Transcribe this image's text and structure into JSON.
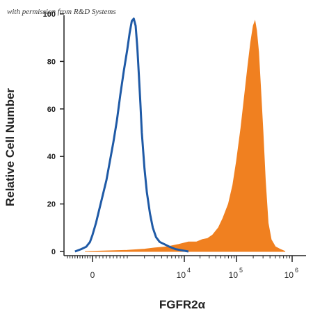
{
  "watermark": "with permission from R&D Systems",
  "chart_data": {
    "type": "area",
    "xlabel": "FGFR2α",
    "ylabel": "Relative Cell Number",
    "x_scale": "biexponential",
    "xlim": [
      -1000,
      1000000
    ],
    "ylim": [
      0,
      100
    ],
    "y_ticks": [
      0,
      20,
      40,
      60,
      80,
      100
    ],
    "x_ticks": [
      {
        "value": 0,
        "label": "0",
        "exponent": ""
      },
      {
        "value": 10000,
        "label": "10",
        "exponent": "4"
      },
      {
        "value": 100000,
        "label": "10",
        "exponent": "5"
      },
      {
        "value": 1000000,
        "label": "10",
        "exponent": "6"
      }
    ],
    "grid": false,
    "series": [
      {
        "style": "outline",
        "color": "#1f5aa6",
        "x": [
          -700,
          -450,
          -250,
          -100,
          0,
          100,
          200,
          300,
          400,
          500,
          600,
          700,
          800,
          900,
          1000,
          1100,
          1200,
          1300,
          1400,
          1500,
          1600,
          1700,
          1800,
          2000,
          2200,
          2500,
          2800,
          3200,
          3700,
          4500,
          5500,
          7000,
          9000,
          12000
        ],
        "y": [
          0,
          1,
          2,
          4,
          7,
          12,
          18,
          24,
          30,
          38,
          46,
          55,
          66,
          76,
          85,
          92,
          97,
          98,
          95,
          86,
          74,
          62,
          50,
          35,
          25,
          16,
          10,
          6,
          4,
          3,
          2,
          1,
          0.5,
          0
        ]
      },
      {
        "style": "filled",
        "color": "#f08020",
        "x": [
          -300,
          1000,
          2000,
          3000,
          5000,
          8000,
          12000,
          17000,
          22000,
          28000,
          35000,
          45000,
          55000,
          70000,
          85000,
          100000,
          120000,
          140000,
          160000,
          180000,
          200000,
          215000,
          230000,
          250000,
          270000,
          300000,
          330000,
          370000,
          420000,
          500000,
          600000,
          750000
        ],
        "y": [
          0,
          0.5,
          1,
          1.5,
          2,
          3,
          4,
          4,
          5,
          5.5,
          7,
          10,
          14,
          20,
          28,
          38,
          52,
          66,
          78,
          88,
          95,
          97,
          93,
          84,
          70,
          50,
          30,
          12,
          5,
          2,
          1,
          0
        ]
      }
    ]
  }
}
